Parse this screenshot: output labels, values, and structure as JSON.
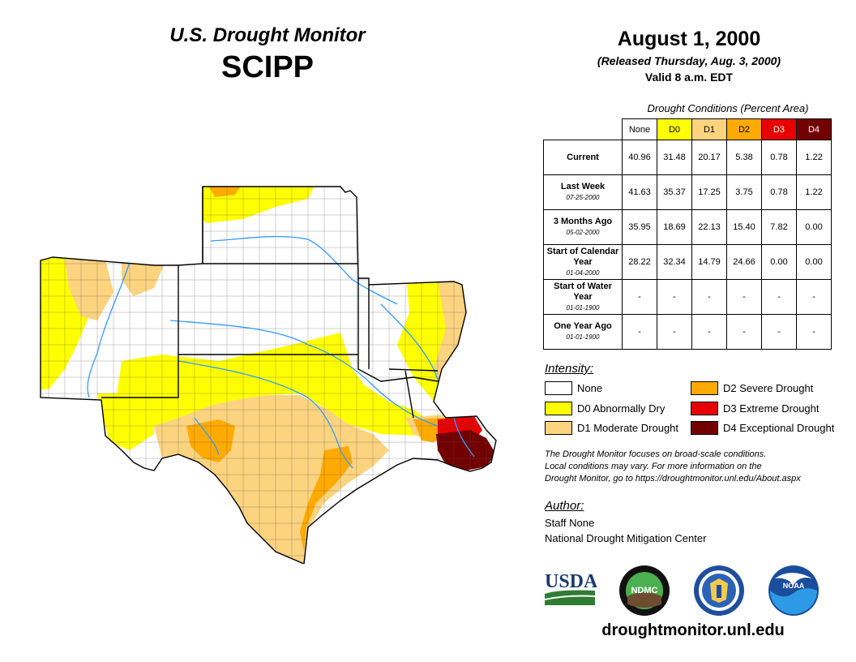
{
  "header": {
    "subtitle": "U.S. Drought Monitor",
    "region": "SCIPP",
    "date": "August 1, 2000",
    "released": "(Released Thursday, Aug. 3, 2000)",
    "valid": "Valid 8 a.m. EDT"
  },
  "conditions_table": {
    "caption": "Drought Conditions (Percent Area)",
    "columns": [
      {
        "label": "None",
        "color": "#ffffff",
        "text_color": "#000000"
      },
      {
        "label": "D0",
        "color": "#ffff00",
        "text_color": "#000000"
      },
      {
        "label": "D1",
        "color": "#fcd37f",
        "text_color": "#000000"
      },
      {
        "label": "D2",
        "color": "#ffaa00",
        "text_color": "#000000"
      },
      {
        "label": "D3",
        "color": "#e60000",
        "text_color": "#ffffff"
      },
      {
        "label": "D4",
        "color": "#730000",
        "text_color": "#ffffff"
      }
    ],
    "rows": [
      {
        "label": "Current",
        "date": "",
        "values": [
          "40.96",
          "31.48",
          "20.17",
          "5.38",
          "0.78",
          "1.22"
        ]
      },
      {
        "label": "Last Week",
        "date": "07-25-2000",
        "values": [
          "41.63",
          "35.37",
          "17.25",
          "3.75",
          "0.78",
          "1.22"
        ]
      },
      {
        "label": "3 Months Ago",
        "date": "05-02-2000",
        "values": [
          "35.95",
          "18.69",
          "22.13",
          "15.40",
          "7.82",
          "0.00"
        ]
      },
      {
        "label": "Start of Calendar Year",
        "date": "01-04-2000",
        "values": [
          "28.22",
          "32.34",
          "14.79",
          "24.66",
          "0.00",
          "0.00"
        ]
      },
      {
        "label": "Start of Water Year",
        "date": "01-01-1900",
        "values": [
          "-",
          "-",
          "-",
          "-",
          "-",
          "-"
        ]
      },
      {
        "label": "One Year Ago",
        "date": "01-01-1900",
        "values": [
          "-",
          "-",
          "-",
          "-",
          "-",
          "-"
        ]
      }
    ]
  },
  "intensity": {
    "label": "Intensity:",
    "items": [
      {
        "label": "None",
        "color": "#ffffff"
      },
      {
        "label": "D0 Abnormally Dry",
        "color": "#ffff00"
      },
      {
        "label": "D1 Moderate Drought",
        "color": "#fcd37f"
      },
      {
        "label": "D2 Severe Drought",
        "color": "#ffaa00"
      },
      {
        "label": "D3 Extreme Drought",
        "color": "#e60000"
      },
      {
        "label": "D4 Exceptional Drought",
        "color": "#730000"
      }
    ]
  },
  "note": {
    "line1": "The Drought Monitor focuses on broad-scale conditions.",
    "line2": "Local conditions may vary. For more information on the",
    "line3": "Drought Monitor, go to https://droughtmonitor.unl.edu/About.aspx"
  },
  "author": {
    "label": "Author:",
    "name": "Staff None",
    "org": "National Drought Mitigation Center"
  },
  "logos": {
    "usda": "USDA",
    "ndmc": "NDMC",
    "noaa": "NOAA"
  },
  "footer_url": "droughtmonitor.unl.edu",
  "map": {
    "states": [
      "Kansas",
      "Oklahoma",
      "Texas",
      "Arkansas",
      "Louisiana",
      "New Mexico"
    ],
    "colors": {
      "none": "#ffffff",
      "d0": "#ffff00",
      "d1": "#fcd37f",
      "d2": "#ffaa00",
      "d3": "#e60000",
      "d4": "#730000",
      "river": "#3399ff"
    }
  }
}
